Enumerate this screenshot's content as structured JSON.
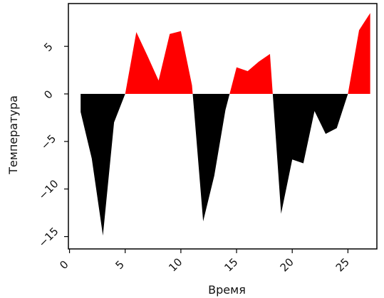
{
  "chart_data": {
    "type": "area",
    "xlabel": "Время",
    "ylabel": "Температура",
    "xlim": [
      -0.1,
      27.6
    ],
    "ylim": [
      -16.3,
      9.5
    ],
    "x_ticks": [
      0,
      5,
      10,
      15,
      20,
      25
    ],
    "y_ticks": [
      -15,
      -10,
      -5,
      0,
      5
    ],
    "x_tick_labels": [
      "0",
      "5",
      "10",
      "15",
      "20",
      "25"
    ],
    "y_tick_labels": [
      "−15",
      "−10",
      "−5",
      "0",
      "5"
    ],
    "grid": false,
    "series": [
      {
        "x": [
          1,
          2,
          3,
          4,
          5,
          6,
          7,
          8,
          9,
          10,
          11,
          12,
          13,
          14,
          15,
          16,
          17,
          18,
          19,
          20,
          21,
          22,
          23,
          24,
          25,
          26,
          27
        ],
        "y": [
          -1.9,
          -6.8,
          -14.9,
          -3.0,
          0.0,
          6.5,
          4.0,
          1.4,
          6.3,
          6.6,
          0.9,
          -13.4,
          -8.6,
          -1.7,
          2.8,
          2.4,
          3.4,
          4.2,
          -12.6,
          -6.9,
          -7.3,
          -1.8,
          -4.2,
          -3.6,
          0.0,
          6.7,
          8.5
        ]
      }
    ],
    "colors": {
      "positive": "#ff0000",
      "negative": "#000000"
    }
  }
}
